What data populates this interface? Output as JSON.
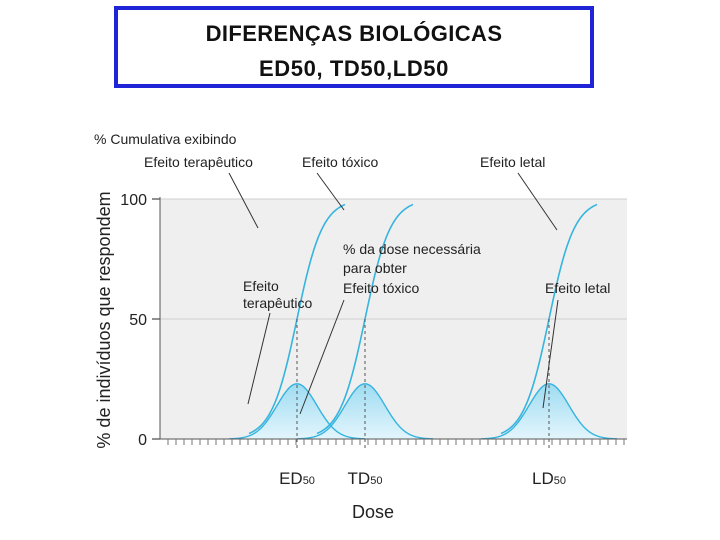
{
  "slide": {
    "title_line1": "DIFERENÇAS BIOLÓGICAS",
    "title_line2": "ED50, TD50,LD50"
  },
  "colors": {
    "plot_background": "#efefef",
    "curve": "#35b4df",
    "fill_top": "#9edcf2",
    "fill_bottom": "#e3f5fc",
    "grid": "#cfcfcf",
    "text": "#222222",
    "title_border": "#1f24d6"
  },
  "chart_data": {
    "type": "line",
    "title": "% Cumulativa exibindo",
    "xlabel": "Dose",
    "ylabel": "% de indivíduos que respondem",
    "ylim": [
      0,
      100
    ],
    "y_ticks": [
      "0",
      "50",
      "100"
    ],
    "xlim": [
      0,
      100
    ],
    "x_ticks": [
      {
        "main": "ED",
        "sub": "50",
        "x": 16
      },
      {
        "main": "TD",
        "sub": "50",
        "x": 33
      },
      {
        "main": "LD",
        "sub": "50",
        "x": 79
      }
    ],
    "series": [
      {
        "name": "Efeito terapêutico",
        "type": "cumulative",
        "midpoint": 16,
        "spread": 3.2,
        "top": 100
      },
      {
        "name": "Efeito tóxico",
        "type": "cumulative",
        "midpoint": 33,
        "spread": 3.2,
        "top": 100
      },
      {
        "name": "Efeito letal",
        "type": "cumulative",
        "midpoint": 79,
        "spread": 3.2,
        "top": 100
      },
      {
        "name": "Efeito terapêutico",
        "type": "distribution",
        "midpoint": 16,
        "sd": 5,
        "peak": 23
      },
      {
        "name": "Efeito tóxico",
        "type": "distribution",
        "midpoint": 33,
        "sd": 5,
        "peak": 23
      },
      {
        "name": "Efeito letal",
        "type": "distribution",
        "midpoint": 79,
        "sd": 5,
        "peak": 23
      }
    ],
    "annotations": {
      "cum_therapeutic": "Efeito terapêutico",
      "cum_toxic": "Efeito tóxico",
      "cum_lethal": "Efeito letal",
      "dist_therapeutic_l1": "Efeito",
      "dist_therapeutic_l2": "terapêutico",
      "dist_toxic_l1": "% da dose necessária",
      "dist_toxic_l2": "para obter",
      "dist_toxic_l3": "Efeito tóxico",
      "dist_lethal": "Efeito letal"
    }
  }
}
